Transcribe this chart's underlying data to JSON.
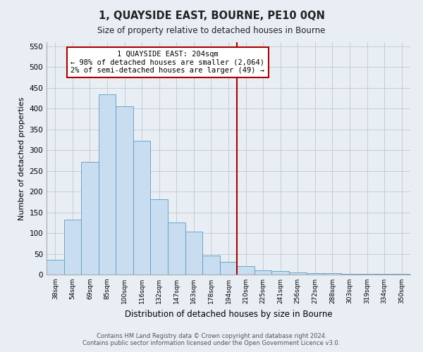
{
  "title": "1, QUAYSIDE EAST, BOURNE, PE10 0QN",
  "subtitle": "Size of property relative to detached houses in Bourne",
  "xlabel": "Distribution of detached houses by size in Bourne",
  "ylabel": "Number of detached properties",
  "bar_labels": [
    "38sqm",
    "54sqm",
    "69sqm",
    "85sqm",
    "100sqm",
    "116sqm",
    "132sqm",
    "147sqm",
    "163sqm",
    "178sqm",
    "194sqm",
    "210sqm",
    "225sqm",
    "241sqm",
    "256sqm",
    "272sqm",
    "288sqm",
    "303sqm",
    "319sqm",
    "334sqm",
    "350sqm"
  ],
  "bar_values": [
    35,
    133,
    272,
    435,
    405,
    323,
    182,
    125,
    103,
    46,
    30,
    20,
    10,
    8,
    5,
    4,
    3,
    2,
    1,
    1,
    1
  ],
  "bar_color": "#c8ddf0",
  "bar_edge_color": "#5a9cc5",
  "vline_x": 10.5,
  "vline_color": "#aa0000",
  "annotation_text": "1 QUAYSIDE EAST: 204sqm\n← 98% of detached houses are smaller (2,064)\n2% of semi-detached houses are larger (49) →",
  "annotation_box_color": "#ffffff",
  "annotation_box_edge": "#aa0000",
  "ylim": [
    0,
    560
  ],
  "yticks": [
    0,
    50,
    100,
    150,
    200,
    250,
    300,
    350,
    400,
    450,
    500,
    550
  ],
  "footer_line1": "Contains HM Land Registry data © Crown copyright and database right 2024.",
  "footer_line2": "Contains public sector information licensed under the Open Government Licence v3.0.",
  "bg_color": "#e8eef4"
}
